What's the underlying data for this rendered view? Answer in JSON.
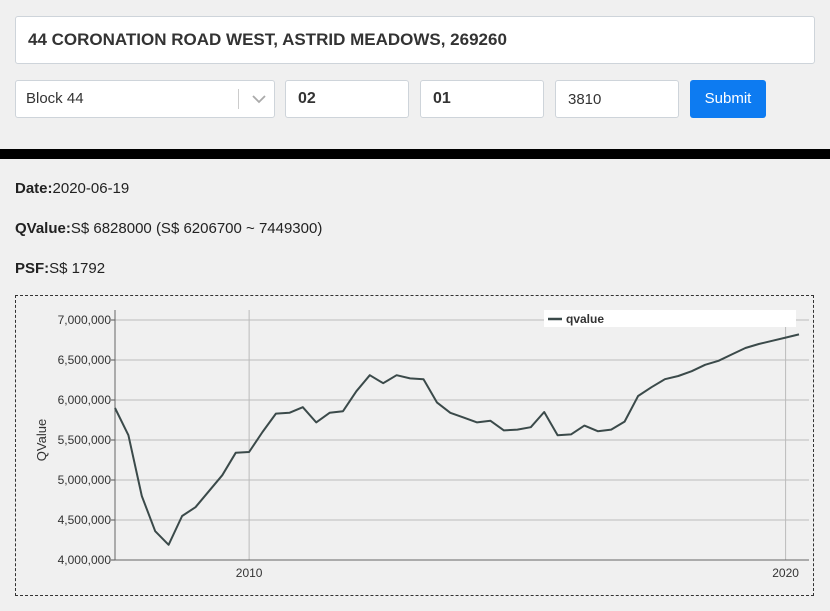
{
  "form": {
    "address_value": "44 CORONATION ROAD WEST, ASTRID MEADOWS, 269260",
    "block_selected": "Block 44",
    "floor_value": "02",
    "unit_value": "01",
    "area_value": "3810",
    "submit_label": "Submit"
  },
  "result": {
    "date_label": "Date:",
    "date_value": "2020-06-19",
    "qvalue_label": "QValue:",
    "qvalue_value": "S$ 6828000 (S$ 6206700 ~ 7449300)",
    "psf_label": "PSF:",
    "psf_value": "S$ 1792"
  },
  "colors": {
    "line": "#3b4a4a",
    "submit": "#0d7bf1",
    "grid": "#bbbbbb"
  },
  "chart_data": {
    "type": "line",
    "ylabel": "QValue",
    "ylim": [
      4000000,
      7000000
    ],
    "yticks": [
      {
        "value": 4000000,
        "label": "4,000,000"
      },
      {
        "value": 4500000,
        "label": "4,500,000"
      },
      {
        "value": 5000000,
        "label": "5,000,000"
      },
      {
        "value": 5500000,
        "label": "5,500,000"
      },
      {
        "value": 6000000,
        "label": "6,000,000"
      },
      {
        "value": 6500000,
        "label": "6,500,000"
      },
      {
        "value": 7000000,
        "label": "7,000,000"
      }
    ],
    "xlim": [
      2007.5,
      2020.25
    ],
    "xticks": [
      {
        "value": 2010,
        "label": "2010"
      },
      {
        "value": 2020,
        "label": "2020"
      }
    ],
    "legend": "top-right",
    "grid": true,
    "series": [
      {
        "name": "qvalue",
        "x": [
          2007.5,
          2007.75,
          2008.0,
          2008.25,
          2008.5,
          2008.75,
          2009.0,
          2009.25,
          2009.5,
          2009.75,
          2010.0,
          2010.25,
          2010.5,
          2010.75,
          2011.0,
          2011.25,
          2011.5,
          2011.75,
          2012.0,
          2012.25,
          2012.5,
          2012.75,
          2013.0,
          2013.25,
          2013.5,
          2013.75,
          2014.0,
          2014.25,
          2014.5,
          2014.75,
          2015.0,
          2015.25,
          2015.5,
          2015.75,
          2016.0,
          2016.25,
          2016.5,
          2016.75,
          2017.0,
          2017.25,
          2017.5,
          2017.75,
          2018.0,
          2018.25,
          2018.5,
          2018.75,
          2019.0,
          2019.25,
          2019.5,
          2019.75,
          2020.0,
          2020.25
        ],
        "values": [
          5900000,
          5560000,
          4800000,
          4360000,
          4190000,
          4550000,
          4660000,
          4860000,
          5060000,
          5340000,
          5350000,
          5600000,
          5830000,
          5840000,
          5910000,
          5720000,
          5840000,
          5860000,
          6110000,
          6310000,
          6210000,
          6310000,
          6270000,
          6260000,
          5970000,
          5840000,
          5780000,
          5720000,
          5740000,
          5620000,
          5630000,
          5660000,
          5850000,
          5560000,
          5570000,
          5680000,
          5610000,
          5630000,
          5730000,
          6050000,
          6160000,
          6260000,
          6300000,
          6360000,
          6440000,
          6490000,
          6570000,
          6650000,
          6700000,
          6740000,
          6780000,
          6820000
        ]
      }
    ]
  }
}
